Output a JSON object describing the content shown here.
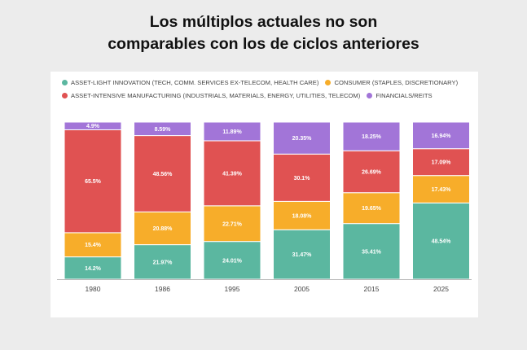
{
  "title": {
    "line1": "Los múltiplos actuales no son",
    "line2": "comparables con los de ciclos anteriores"
  },
  "chart_data": {
    "type": "bar",
    "stacked": true,
    "percent": true,
    "categories": [
      "1980",
      "1986",
      "1995",
      "2005",
      "2015",
      "2025"
    ],
    "series": [
      {
        "name": "ASSET-LIGHT INNOVATION (TECH, COMM. SERVICES EX-TELECOM, HEALTH CARE)",
        "color": "#5bb7a0",
        "values": [
          14.2,
          21.97,
          24.01,
          31.47,
          35.41,
          48.54
        ],
        "labels": [
          "14.2%",
          "21.97%",
          "24.01%",
          "31.47%",
          "35.41%",
          "48.54%"
        ]
      },
      {
        "name": "CONSUMER (STAPLES, DISCRETIONARY)",
        "color": "#f7ad2a",
        "values": [
          15.4,
          20.88,
          22.71,
          18.08,
          19.65,
          17.43
        ],
        "labels": [
          "15.4%",
          "20.88%",
          "22.71%",
          "18.08%",
          "19.65%",
          "17.43%"
        ]
      },
      {
        "name": "ASSET-INTENSIVE MANUFACTURING (INDUSTRIALS, MATERIALS, ENERGY, UTILITIES, TELECOM)",
        "color": "#e05252",
        "values": [
          65.5,
          48.56,
          41.39,
          30.1,
          26.69,
          17.09
        ],
        "labels": [
          "65.5%",
          "48.56%",
          "41.39%",
          "30.1%",
          "26.69%",
          "17.09%"
        ]
      },
      {
        "name": "FINANCIALS/REITS",
        "color": "#a275d8",
        "values": [
          4.9,
          8.59,
          11.89,
          20.35,
          18.25,
          16.94
        ],
        "labels": [
          "4.9%",
          "8.59%",
          "11.89%",
          "20.35%",
          "18.25%",
          "16.94%"
        ]
      }
    ],
    "legend_position": "top",
    "grid": false
  }
}
